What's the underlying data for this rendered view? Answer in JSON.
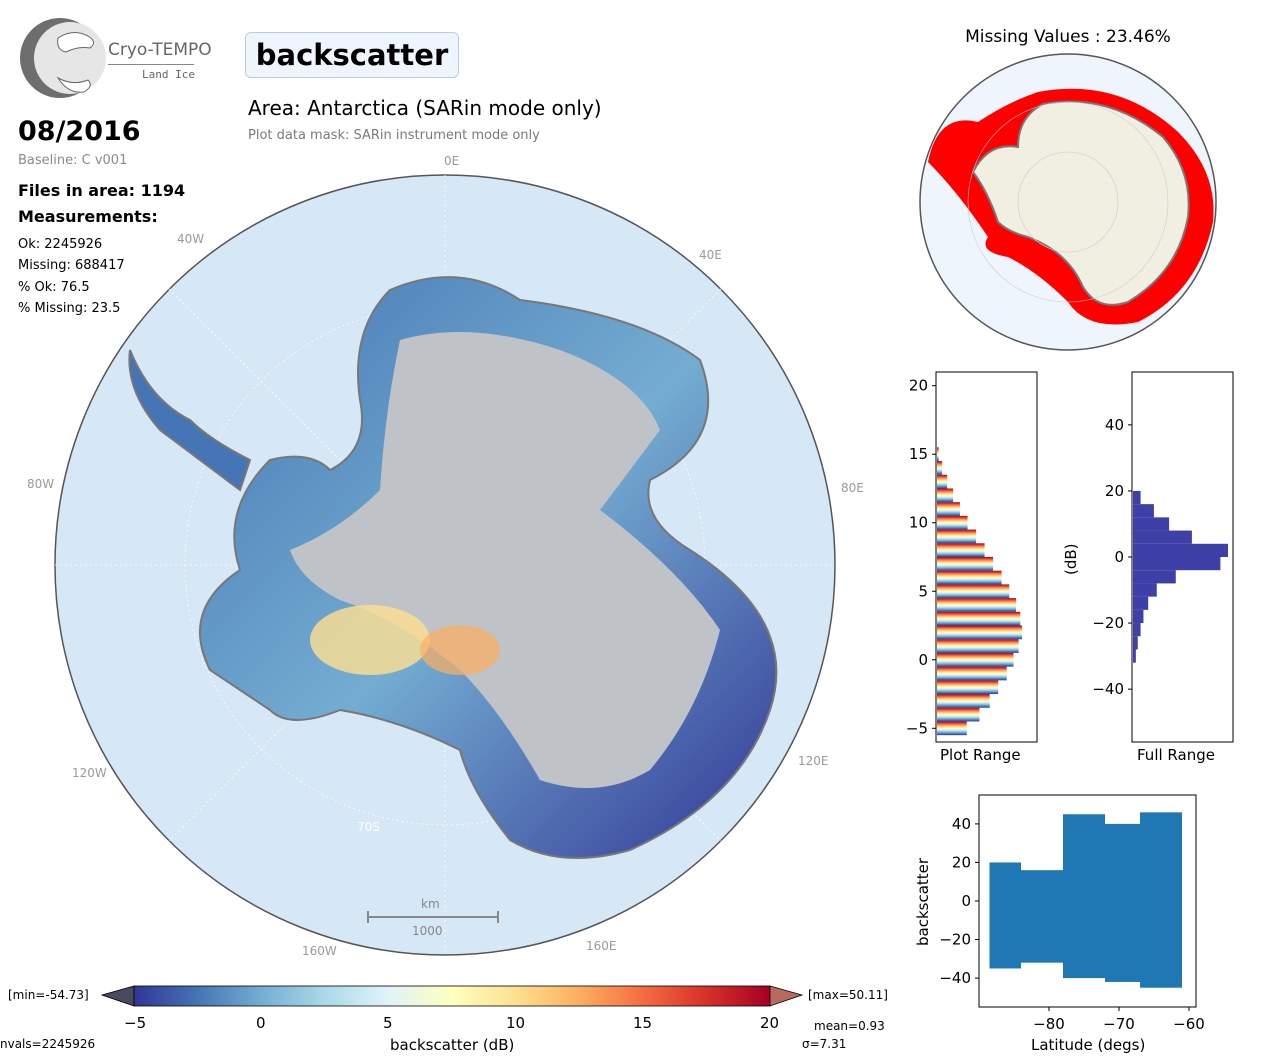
{
  "header": {
    "logo_name": "Cryo-TEMPO",
    "logo_sub": "Land Ice",
    "title": "backscatter",
    "area": "Area: Antarctica (SARin mode only)",
    "mask": "Plot data mask: SARin instrument mode only"
  },
  "info": {
    "date": "08/2016",
    "baseline": "Baseline: C v001",
    "files": "Files in area: 1194",
    "measurements": "Measurements:",
    "ok": "Ok: 2245926",
    "missing": "Missing: 688417",
    "pct_ok": "% Ok: 76.5",
    "pct_missing": "% Missing: 23.5"
  },
  "map": {
    "lon_labels": [
      "0E",
      "40E",
      "80E",
      "120E",
      "160E",
      "160W",
      "120W",
      "80W",
      "40W"
    ],
    "lat_label": "70S",
    "scale_unit": "km",
    "scale_value": "1000"
  },
  "missing_map": {
    "title": "Missing Values : 23.46%"
  },
  "colorbar": {
    "min_label": "[min=-54.73]",
    "max_label": "[max=50.11]",
    "ticks": [
      "−5",
      "0",
      "5",
      "10",
      "15",
      "20"
    ],
    "label": "backscatter (dB)",
    "nvals": "nvals=2245926",
    "mean": "mean=0.93",
    "sigma": "σ=7.31",
    "colors": [
      "#313695",
      "#4575b4",
      "#74add1",
      "#abd9e9",
      "#e0f3f8",
      "#ffffbf",
      "#fee090",
      "#fdae61",
      "#f46d43",
      "#d73027",
      "#a50026"
    ]
  },
  "chart_data": [
    {
      "type": "bar",
      "orientation": "horizontal",
      "xlabel": "Plot Range",
      "ylim": [
        -6,
        21
      ],
      "y_ticks": [
        "−5",
        "0",
        "5",
        "10",
        "15",
        "20"
      ],
      "y": [
        -5,
        -4,
        -3,
        -2,
        -1,
        0,
        1,
        2,
        3,
        4,
        5,
        6,
        7,
        8,
        9,
        10,
        11,
        12,
        13,
        14,
        15
      ],
      "values": [
        0.35,
        0.5,
        0.62,
        0.72,
        0.82,
        0.9,
        0.96,
        1.0,
        0.98,
        0.93,
        0.85,
        0.76,
        0.66,
        0.56,
        0.46,
        0.36,
        0.27,
        0.19,
        0.12,
        0.06,
        0.02
      ]
    },
    {
      "type": "bar",
      "orientation": "horizontal",
      "xlabel": "Full Range",
      "ylabel": "(dB)",
      "ylim": [
        -56,
        56
      ],
      "y_ticks": [
        "40",
        "20",
        "0",
        "−20",
        "−40"
      ],
      "y": [
        -30,
        -26,
        -22,
        -18,
        -14,
        -10,
        -6,
        -2,
        2,
        6,
        10,
        14,
        18
      ],
      "values": [
        0.03,
        0.05,
        0.08,
        0.11,
        0.16,
        0.25,
        0.45,
        0.92,
        1.0,
        0.62,
        0.38,
        0.22,
        0.08
      ],
      "color": "#3f3fa8"
    },
    {
      "type": "scatter",
      "xlabel": "Latitude (degs)",
      "ylabel": "backscatter",
      "xlim": [
        -90,
        -59
      ],
      "ylim": [
        -55,
        55
      ],
      "x_ticks": [
        "−80",
        "−70",
        "−60"
      ],
      "y_ticks": [
        "40",
        "20",
        "0",
        "−20",
        "−40"
      ],
      "color": "#1f77b4",
      "bands": [
        {
          "x": [
            -88.5,
            -84
          ],
          "y": [
            -35,
            20
          ]
        },
        {
          "x": [
            -84,
            -78
          ],
          "y": [
            -32,
            16
          ]
        },
        {
          "x": [
            -78,
            -72
          ],
          "y": [
            -40,
            45
          ]
        },
        {
          "x": [
            -72,
            -67
          ],
          "y": [
            -42,
            40
          ]
        },
        {
          "x": [
            -67,
            -61
          ],
          "y": [
            -45,
            46
          ]
        }
      ]
    }
  ]
}
